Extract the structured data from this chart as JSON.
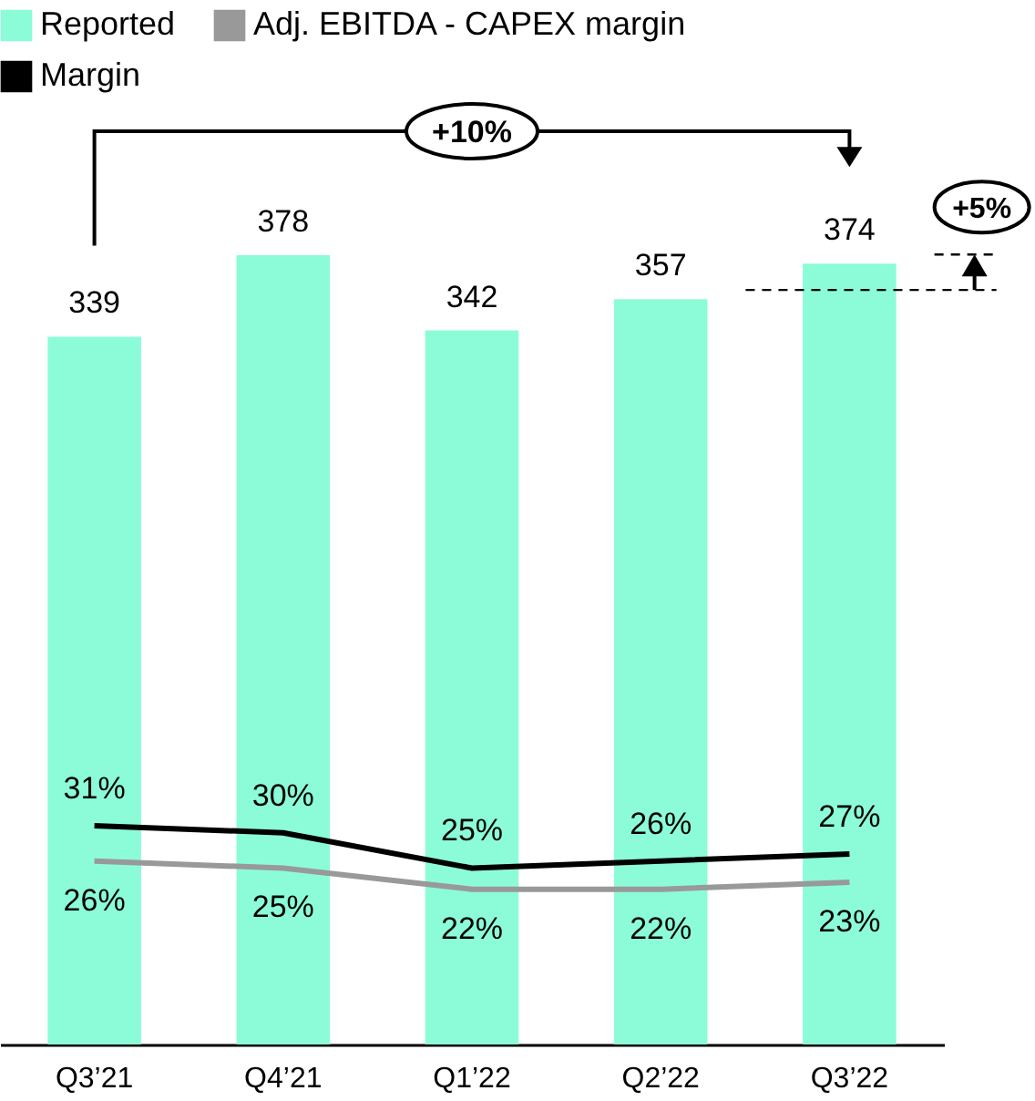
{
  "chart_data": {
    "type": "bar",
    "categories": [
      "Q3’21",
      "Q4’21",
      "Q1’22",
      "Q2’22",
      "Q3’22"
    ],
    "series": [
      {
        "name": "Reported",
        "color": "#8cfcd8",
        "values": [
          339,
          378,
          342,
          357,
          374
        ]
      },
      {
        "name": "Adj. EBITDA - CAPEX margin",
        "type": "line",
        "axis": "y2",
        "color": "#999999",
        "values": [
          26,
          25,
          22,
          22,
          23
        ],
        "value_labels": [
          "26%",
          "25%",
          "22%",
          "22%",
          "23%"
        ]
      },
      {
        "name": "Margin",
        "type": "line",
        "axis": "y2",
        "color": "#000000",
        "values": [
          31,
          30,
          25,
          26,
          27
        ],
        "value_labels": [
          "31%",
          "30%",
          "25%",
          "26%",
          "27%"
        ]
      }
    ],
    "ylim": [
      0,
      440
    ],
    "tick_labels": "x",
    "legend": "top left",
    "data_labels": true,
    "grid": false,
    "annotations": [
      "+10%",
      "+5%"
    ]
  }
}
